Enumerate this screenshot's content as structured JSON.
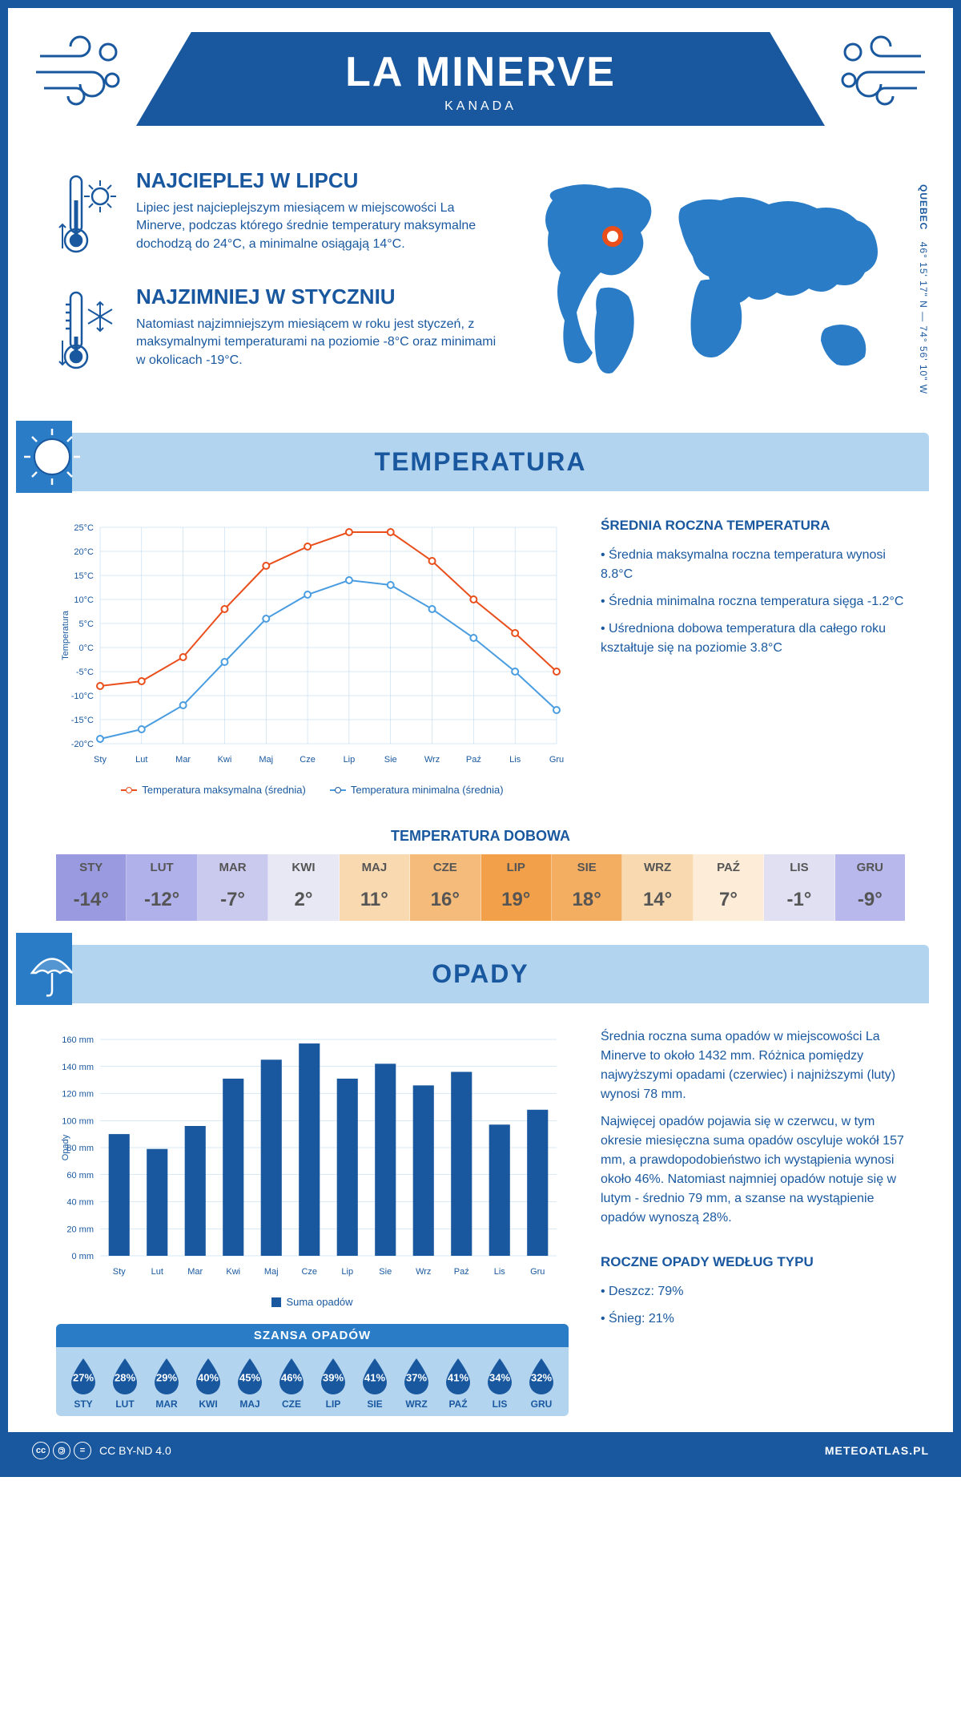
{
  "header": {
    "title": "LA MINERVE",
    "subtitle": "KANADA"
  },
  "intro": {
    "hot": {
      "title": "NAJCIEPLEJ W LIPCU",
      "text": "Lipiec jest najcieplejszym miesiącem w miejscowości La Minerve, podczas którego średnie temperatury maksymalne dochodzą do 24°C, a minimalne osiągają 14°C."
    },
    "cold": {
      "title": "NAJZIMNIEJ W STYCZNIU",
      "text": "Natomiast najzimniejszym miesiącem w roku jest styczeń, z maksymalnymi temperaturami na poziomie -8°C oraz minimami w okolicach -19°C."
    },
    "province": "QUEBEC",
    "coords": "46° 15' 17\" N — 74° 56' 10\" W"
  },
  "temperature_section": {
    "title": "TEMPERATURA",
    "chart": {
      "type": "line",
      "months": [
        "Sty",
        "Lut",
        "Mar",
        "Kwi",
        "Maj",
        "Cze",
        "Lip",
        "Sie",
        "Wrz",
        "Paź",
        "Lis",
        "Gru"
      ],
      "max_series": [
        -8,
        -7,
        -2,
        8,
        17,
        21,
        24,
        24,
        18,
        10,
        3,
        -5
      ],
      "min_series": [
        -19,
        -17,
        -12,
        -3,
        6,
        11,
        14,
        13,
        8,
        2,
        -5,
        -13
      ],
      "max_color": "#e94e1b",
      "min_color": "#4a9de0",
      "ylim": [
        -20,
        25
      ],
      "ytick_step": 5,
      "ylabel": "Temperatura",
      "grid_color": "#b3d4ef",
      "legend_max": "Temperatura maksymalna (średnia)",
      "legend_min": "Temperatura minimalna (średnia)"
    },
    "annual": {
      "title": "ŚREDNIA ROCZNA TEMPERATURA",
      "b1": "• Średnia maksymalna roczna temperatura wynosi 8.8°C",
      "b2": "• Średnia minimalna roczna temperatura sięga -1.2°C",
      "b3": "• Uśredniona dobowa temperatura dla całego roku kształtuje się na poziomie 3.8°C"
    },
    "daily": {
      "title": "TEMPERATURA DOBOWA",
      "months": [
        "STY",
        "LUT",
        "MAR",
        "KWI",
        "MAJ",
        "CZE",
        "LIP",
        "SIE",
        "WRZ",
        "PAŹ",
        "LIS",
        "GRU"
      ],
      "values": [
        "-14°",
        "-12°",
        "-7°",
        "2°",
        "11°",
        "16°",
        "19°",
        "18°",
        "14°",
        "7°",
        "-1°",
        "-9°"
      ],
      "colors": [
        "#9a9ae0",
        "#b0b0ea",
        "#cacaef",
        "#e8e8f5",
        "#f8d9b0",
        "#f5bb7a",
        "#f2a04a",
        "#f4ae62",
        "#f8d9b0",
        "#fcecd8",
        "#e0e0f2",
        "#b8b8ec"
      ]
    }
  },
  "precip_section": {
    "title": "OPADY",
    "chart": {
      "type": "bar",
      "months": [
        "Sty",
        "Lut",
        "Mar",
        "Kwi",
        "Maj",
        "Cze",
        "Lip",
        "Sie",
        "Wrz",
        "Paź",
        "Lis",
        "Gru"
      ],
      "values": [
        90,
        79,
        96,
        131,
        145,
        157,
        131,
        142,
        126,
        136,
        97,
        108
      ],
      "bar_color": "#19589f",
      "ylim": [
        0,
        160
      ],
      "ytick_step": 20,
      "ylabel": "Opady",
      "grid_color": "#b3d4ef",
      "legend": "Suma opadów"
    },
    "text": {
      "p1": "Średnia roczna suma opadów w miejscowości La Minerve to około 1432 mm. Różnica pomiędzy najwyższymi opadami (czerwiec) i najniższymi (luty) wynosi 78 mm.",
      "p2": "Najwięcej opadów pojawia się w czerwcu, w tym okresie miesięczna suma opadów oscyluje wokół 157 mm, a prawdopodobieństwo ich wystąpienia wynosi około 46%. Natomiast najmniej opadów notuje się w lutym - średnio 79 mm, a szanse na wystąpienie opadów wynoszą 28%."
    },
    "chance": {
      "title": "SZANSA OPADÓW",
      "months": [
        "STY",
        "LUT",
        "MAR",
        "KWI",
        "MAJ",
        "CZE",
        "LIP",
        "SIE",
        "WRZ",
        "PAŹ",
        "LIS",
        "GRU"
      ],
      "values": [
        "27%",
        "28%",
        "29%",
        "40%",
        "45%",
        "46%",
        "39%",
        "41%",
        "37%",
        "41%",
        "34%",
        "32%"
      ],
      "drop_color": "#19589f"
    },
    "by_type": {
      "title": "ROCZNE OPADY WEDŁUG TYPU",
      "rain": "• Deszcz: 79%",
      "snow": "• Śnieg: 21%"
    }
  },
  "footer": {
    "license": "CC BY-ND 4.0",
    "site": "METEOATLAS.PL"
  },
  "colors": {
    "primary": "#19589f",
    "light_blue": "#b3d4ef",
    "mid_blue": "#2a7cc7"
  }
}
